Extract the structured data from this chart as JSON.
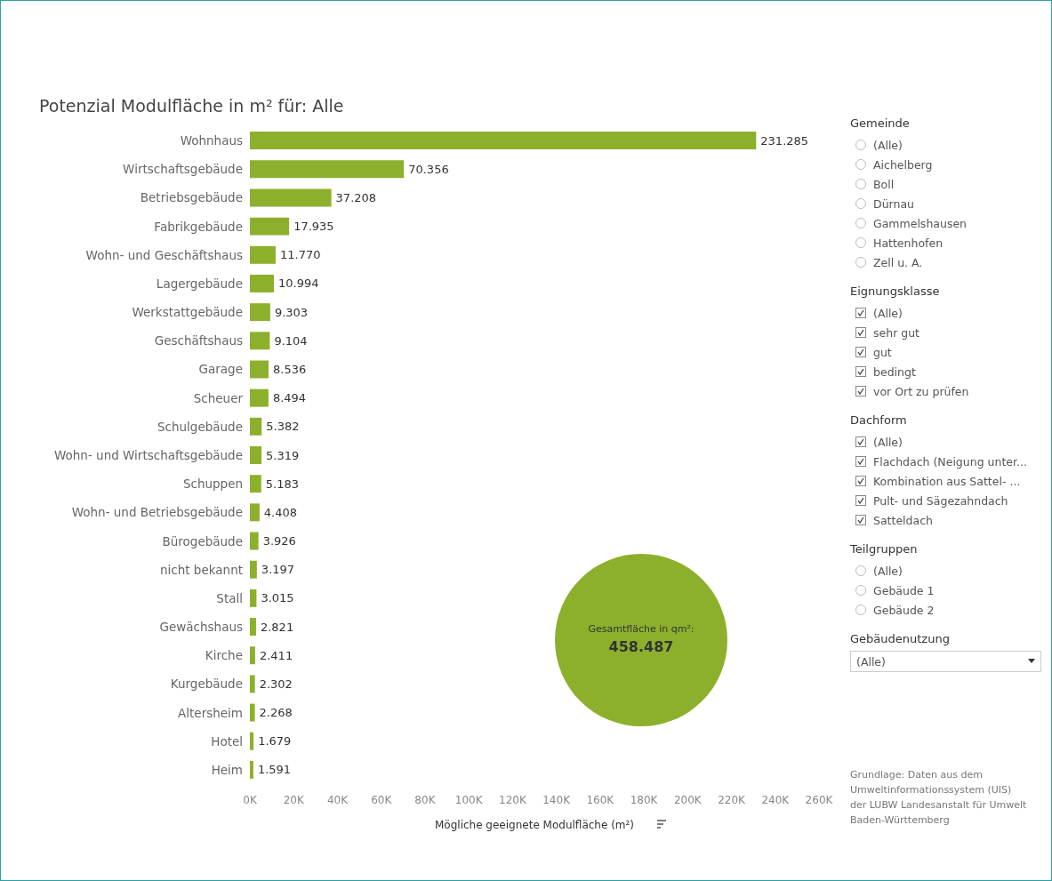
{
  "chart_data": [
    {
      "type": "bar",
      "orientation": "horizontal",
      "title": "Potenzial Modulfläche in m² für: Alle",
      "xlabel": "Mögliche geeignete Modulfläche (m²)",
      "categories": [
        "Wohnhaus",
        "Wirtschaftsgebäude",
        "Betriebsgebäude",
        "Fabrikgebäude",
        "Wohn- und Geschäftshaus",
        "Lagergebäude",
        "Werkstattgebäude",
        "Geschäftshaus",
        "Garage",
        "Scheuer",
        "Schulgebäude",
        "Wohn- und Wirtschaftsgebäude",
        "Schuppen",
        "Wohn- und Betriebsgebäude",
        "Bürogebäude",
        "nicht bekannt",
        "Stall",
        "Gewächshaus",
        "Kirche",
        "Kurgebäude",
        "Altersheim",
        "Hotel",
        "Heim"
      ],
      "values": [
        231285,
        70356,
        37208,
        17935,
        11770,
        10994,
        9303,
        9104,
        8536,
        8494,
        5382,
        5319,
        5183,
        4408,
        3926,
        3197,
        3015,
        2821,
        2411,
        2302,
        2268,
        1679,
        1591
      ],
      "value_labels": [
        "231.285",
        "70.356",
        "37.208",
        "17.935",
        "11.770",
        "10.994",
        "9.303",
        "9.104",
        "8.536",
        "8.494",
        "5.382",
        "5.319",
        "5.183",
        "4.408",
        "3.926",
        "3.197",
        "3.015",
        "2.821",
        "2.411",
        "2.302",
        "2.268",
        "1.679",
        "1.591"
      ],
      "color": "#8db02c",
      "xlim": [
        0,
        260000
      ],
      "xticks": [
        {
          "value": 0,
          "label": "0K"
        },
        {
          "value": 20000,
          "label": "20K"
        },
        {
          "value": 40000,
          "label": "40K"
        },
        {
          "value": 60000,
          "label": "60K"
        },
        {
          "value": 80000,
          "label": "80K"
        },
        {
          "value": 100000,
          "label": "100K"
        },
        {
          "value": 120000,
          "label": "120K"
        },
        {
          "value": 140000,
          "label": "140K"
        },
        {
          "value": 160000,
          "label": "160K"
        },
        {
          "value": 180000,
          "label": "180K"
        },
        {
          "value": 200000,
          "label": "200K"
        },
        {
          "value": 220000,
          "label": "220K"
        },
        {
          "value": 240000,
          "label": "240K"
        },
        {
          "value": 260000,
          "label": "260K"
        }
      ],
      "grid": false,
      "annotations": [
        "Gesamtfläche in qm²:",
        "458.487",
        "Grundlage: Daten aus dem Umweltinformationssystem (UIS) der LUBW Landesanstalt für Umwelt Baden-Württemberg"
      ]
    },
    {
      "type": "other",
      "title": "Gemeinde",
      "annotations": [
        "(Alle)",
        "Aichelberg",
        "Boll",
        "Dürnau",
        "Gammelshausen",
        "Hattenhofen",
        "Zell u. A."
      ]
    },
    {
      "type": "other",
      "title": "Eignungsklasse",
      "annotations": [
        "(Alle)",
        "sehr gut",
        "gut",
        "bedingt",
        "vor Ort zu prüfen"
      ]
    },
    {
      "type": "other",
      "title": "Dachform",
      "annotations": [
        "(Alle)",
        "Flachdach (Neigung unter...",
        "Kombination aus Sattel- ...",
        "Pult- und Sägezahndach",
        "Satteldach"
      ]
    },
    {
      "type": "other",
      "title": "Teilgruppen",
      "annotations": [
        "(Alle)",
        "Gebäude 1",
        "Gebäude 2"
      ]
    },
    {
      "type": "other",
      "title": "Gebäudenutzung",
      "annotations": [
        "(Alle)"
      ]
    }
  ]
}
